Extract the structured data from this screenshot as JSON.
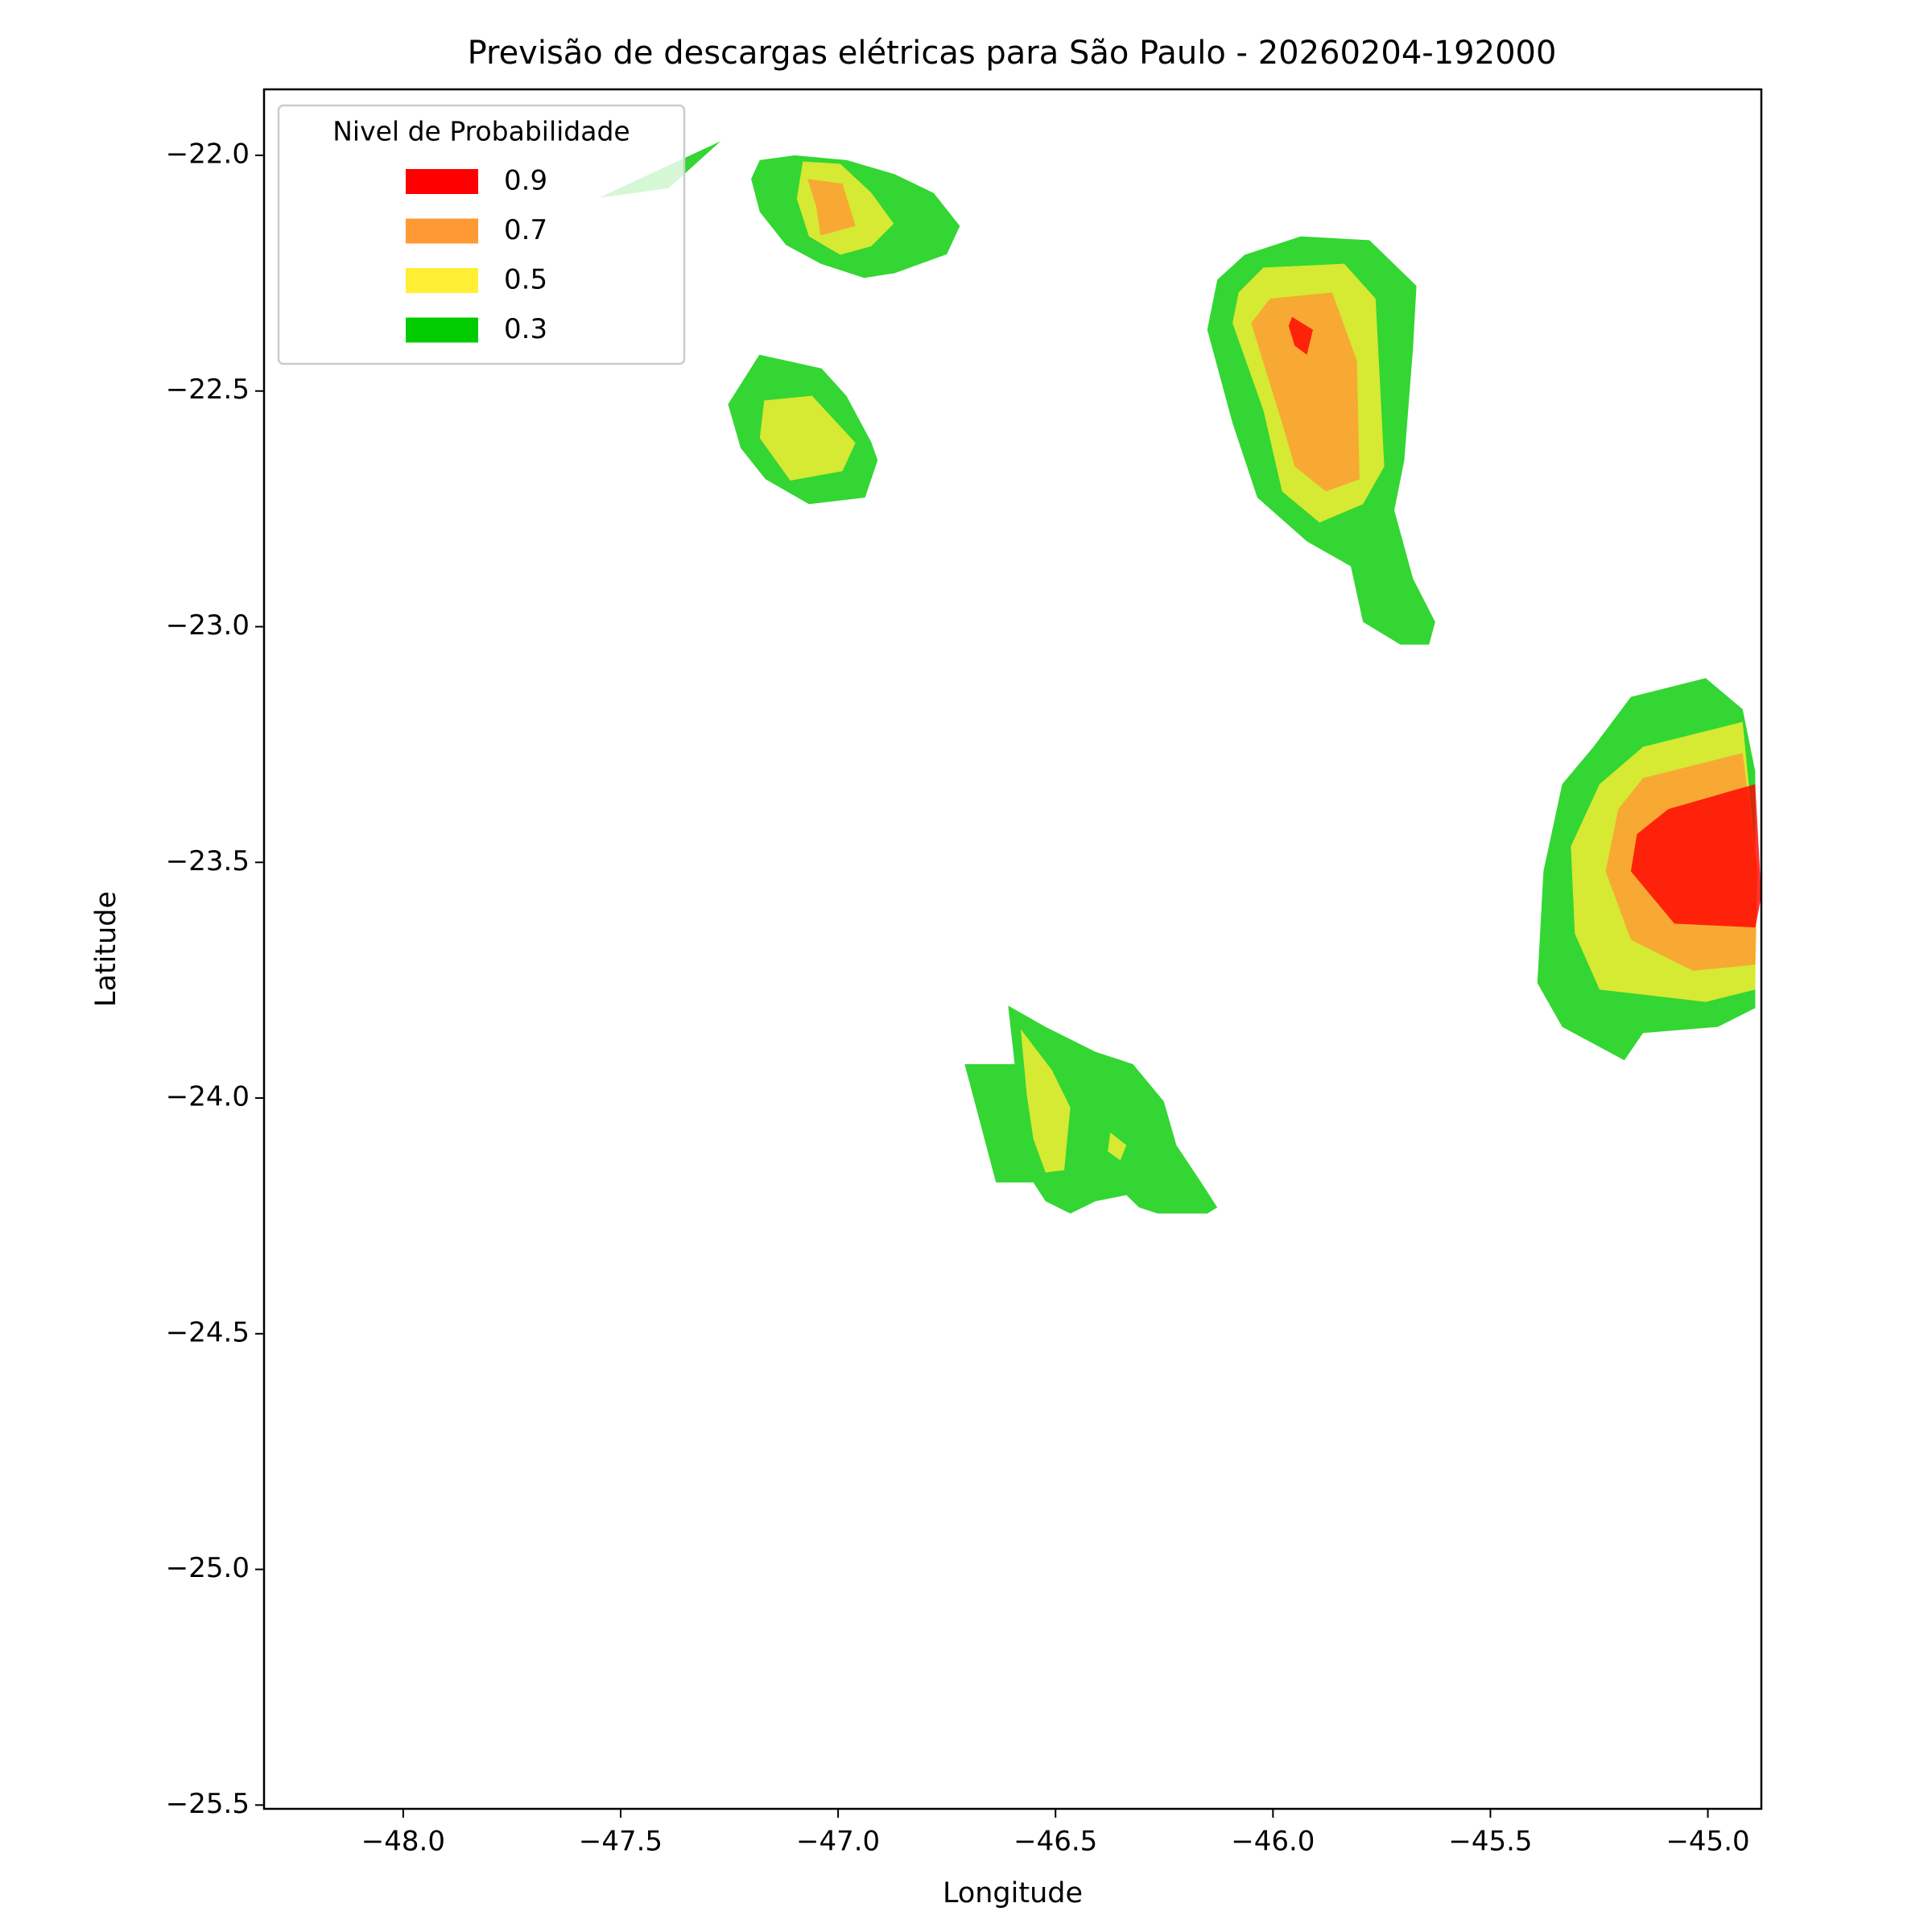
{
  "chart_data": {
    "type": "contour",
    "title": "Previsão de descargas elétricas para São Paulo - 20260204-192000",
    "xlabel": "Longitude",
    "ylabel": "Latitude",
    "xlim": [
      -48.32,
      -44.877
    ],
    "ylim": [
      -25.508,
      -21.86
    ],
    "xticks": [
      {
        "value": -48,
        "label": "−48.0"
      },
      {
        "value": -47.5,
        "label": "−47.5"
      },
      {
        "value": -47,
        "label": "−47.0"
      },
      {
        "value": -46.5,
        "label": "−46.5"
      },
      {
        "value": -46,
        "label": "−46.0"
      },
      {
        "value": -45.5,
        "label": "−45.5"
      },
      {
        "value": -45,
        "label": "−45.0"
      }
    ],
    "yticks": [
      {
        "value": -22,
        "label": "−22.0"
      },
      {
        "value": -22.5,
        "label": "−22.5"
      },
      {
        "value": -23,
        "label": "−23.0"
      },
      {
        "value": -23.5,
        "label": "−23.5"
      },
      {
        "value": -24,
        "label": "−24.0"
      },
      {
        "value": -24.5,
        "label": "−24.5"
      },
      {
        "value": -25,
        "label": "−25.0"
      },
      {
        "value": -25.5,
        "label": "−25.5"
      }
    ],
    "grid": false,
    "legend_title": "Nivel de Probabilidade",
    "legend_position": "upper left",
    "series": [
      {
        "name": "0.9",
        "color": "#ff0000",
        "polygons": [
          [
            [
              -45.956,
              -22.343
            ],
            [
              -45.908,
              -22.37
            ],
            [
              -45.922,
              -22.423
            ],
            [
              -45.95,
              -22.404
            ],
            [
              -45.964,
              -22.362
            ]
          ],
          [
            [
              -45.091,
              -23.387
            ],
            [
              -44.891,
              -23.334
            ],
            [
              -44.877,
              -23.572
            ],
            [
              -44.891,
              -23.638
            ],
            [
              -45.077,
              -23.63
            ],
            [
              -45.177,
              -23.519
            ],
            [
              -45.163,
              -23.44
            ]
          ]
        ]
      },
      {
        "name": "0.7",
        "color": "#ff9933",
        "polygons": [
          [
            [
              -47.07,
              -22.05
            ],
            [
              -46.99,
              -22.06
            ],
            [
              -46.96,
              -22.15
            ],
            [
              -47.04,
              -22.17
            ],
            [
              -47.05,
              -22.11
            ]
          ],
          [
            [
              -46.007,
              -22.304
            ],
            [
              -45.864,
              -22.291
            ],
            [
              -45.807,
              -22.436
            ],
            [
              -45.801,
              -22.687
            ],
            [
              -45.878,
              -22.713
            ],
            [
              -45.95,
              -22.66
            ],
            [
              -45.979,
              -22.568
            ],
            [
              -46.05,
              -22.356
            ]
          ],
          [
            [
              -45.149,
              -23.321
            ],
            [
              -44.92,
              -23.268
            ],
            [
              -44.886,
              -23.519
            ],
            [
              -44.891,
              -23.717
            ],
            [
              -45.034,
              -23.73
            ],
            [
              -45.177,
              -23.664
            ],
            [
              -45.235,
              -23.519
            ],
            [
              -45.206,
              -23.387
            ]
          ]
        ]
      },
      {
        "name": "0.5",
        "color": "#ffee33",
        "polygons": [
          [
            [
              -47.081,
              -22.013
            ],
            [
              -46.995,
              -22.018
            ],
            [
              -46.924,
              -22.079
            ],
            [
              -46.872,
              -22.145
            ],
            [
              -46.924,
              -22.193
            ],
            [
              -46.995,
              -22.211
            ],
            [
              -47.067,
              -22.172
            ],
            [
              -47.095,
              -22.092
            ]
          ],
          [
            [
              -47.17,
              -22.52
            ],
            [
              -47.06,
              -22.51
            ],
            [
              -46.96,
              -22.61
            ],
            [
              -46.99,
              -22.67
            ],
            [
              -47.11,
              -22.69
            ],
            [
              -47.18,
              -22.6
            ]
          ],
          [
            [
              -46.022,
              -22.238
            ],
            [
              -45.836,
              -22.23
            ],
            [
              -45.764,
              -22.304
            ],
            [
              -45.744,
              -22.66
            ],
            [
              -45.793,
              -22.74
            ],
            [
              -45.893,
              -22.779
            ],
            [
              -45.979,
              -22.713
            ],
            [
              -46.022,
              -22.541
            ],
            [
              -46.093,
              -22.356
            ],
            [
              -46.079,
              -22.291
            ]
          ],
          [
            [
              -45.149,
              -23.255
            ],
            [
              -44.92,
              -23.202
            ],
            [
              -44.886,
              -23.519
            ],
            [
              -44.891,
              -23.77
            ],
            [
              -45.005,
              -23.796
            ],
            [
              -45.249,
              -23.77
            ],
            [
              -45.306,
              -23.651
            ],
            [
              -45.315,
              -23.466
            ],
            [
              -45.249,
              -23.334
            ]
          ],
          [
            [
              -46.58,
              -23.854
            ],
            [
              -46.508,
              -23.941
            ],
            [
              -46.466,
              -24.02
            ],
            [
              -46.48,
              -24.153
            ],
            [
              -46.523,
              -24.158
            ],
            [
              -46.551,
              -24.087
            ],
            [
              -46.566,
              -23.994
            ]
          ],
          [
            [
              -46.374,
              -24.073
            ],
            [
              -46.337,
              -24.1
            ],
            [
              -46.351,
              -24.132
            ],
            [
              -46.38,
              -24.113
            ]
          ]
        ]
      },
      {
        "name": "0.3",
        "color": "#00cc00",
        "polygons": [
          [
            [
              -47.55,
              -22.09
            ],
            [
              -47.27,
              -21.97
            ],
            [
              -47.39,
              -22.07
            ]
          ],
          [
            [
              -47.18,
              -22.01
            ],
            [
              -47.1,
              -22.0
            ],
            [
              -46.98,
              -22.01
            ],
            [
              -46.87,
              -22.04
            ],
            [
              -46.78,
              -22.08
            ],
            [
              -46.72,
              -22.15
            ],
            [
              -46.75,
              -22.21
            ],
            [
              -46.87,
              -22.25
            ],
            [
              -46.94,
              -22.26
            ],
            [
              -47.04,
              -22.23
            ],
            [
              -47.12,
              -22.19
            ],
            [
              -47.18,
              -22.12
            ],
            [
              -47.2,
              -22.05
            ]
          ],
          [
            [
              -47.181,
              -22.423
            ],
            [
              -47.038,
              -22.452
            ],
            [
              -46.981,
              -22.51
            ],
            [
              -46.924,
              -22.608
            ],
            [
              -46.909,
              -22.647
            ],
            [
              -46.938,
              -22.726
            ],
            [
              -47.067,
              -22.74
            ],
            [
              -47.167,
              -22.687
            ],
            [
              -47.224,
              -22.621
            ],
            [
              -47.253,
              -22.528
            ]
          ],
          [
            [
              -45.936,
              -22.172
            ],
            [
              -45.778,
              -22.18
            ],
            [
              -45.67,
              -22.277
            ],
            [
              -45.678,
              -22.409
            ],
            [
              -45.698,
              -22.647
            ],
            [
              -45.721,
              -22.753
            ],
            [
              -45.678,
              -22.898
            ],
            [
              -45.627,
              -22.99
            ],
            [
              -45.641,
              -23.038
            ],
            [
              -45.707,
              -23.038
            ],
            [
              -45.793,
              -22.99
            ],
            [
              -45.821,
              -22.872
            ],
            [
              -45.922,
              -22.819
            ],
            [
              -46.036,
              -22.726
            ],
            [
              -46.093,
              -22.568
            ],
            [
              -46.151,
              -22.37
            ],
            [
              -46.128,
              -22.264
            ],
            [
              -46.065,
              -22.211
            ]
          ],
          [
            [
              -45.177,
              -23.149
            ],
            [
              -45.005,
              -23.109
            ],
            [
              -44.92,
              -23.175
            ],
            [
              -44.891,
              -23.307
            ],
            [
              -44.891,
              -23.809
            ],
            [
              -44.977,
              -23.849
            ],
            [
              -45.149,
              -23.862
            ],
            [
              -45.192,
              -23.92
            ],
            [
              -45.335,
              -23.849
            ],
            [
              -45.392,
              -23.756
            ],
            [
              -45.378,
              -23.519
            ],
            [
              -45.335,
              -23.334
            ],
            [
              -45.263,
              -23.255
            ]
          ],
          [
            [
              -46.609,
              -23.804
            ],
            [
              -46.523,
              -23.849
            ],
            [
              -46.408,
              -23.902
            ],
            [
              -46.322,
              -23.928
            ],
            [
              -46.251,
              -24.007
            ],
            [
              -46.222,
              -24.1
            ],
            [
              -46.165,
              -24.179
            ],
            [
              -46.128,
              -24.232
            ],
            [
              -46.151,
              -24.245
            ],
            [
              -46.265,
              -24.245
            ],
            [
              -46.308,
              -24.232
            ],
            [
              -46.337,
              -24.206
            ],
            [
              -46.408,
              -24.219
            ],
            [
              -46.466,
              -24.245
            ],
            [
              -46.523,
              -24.219
            ],
            [
              -46.551,
              -24.179
            ],
            [
              -46.637,
              -24.179
            ],
            [
              -46.709,
              -23.928
            ],
            [
              -46.594,
              -23.928
            ]
          ]
        ]
      }
    ]
  }
}
